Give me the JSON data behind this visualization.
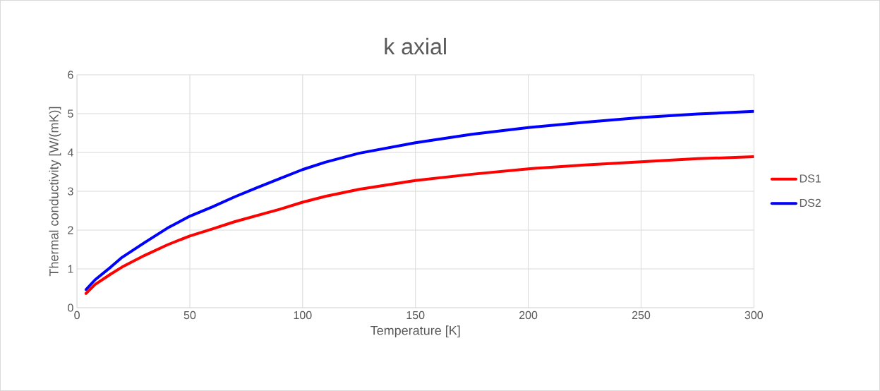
{
  "chart_data": {
    "type": "line",
    "title": "k axial",
    "xlabel": "Temperature [K]",
    "ylabel": "Thermal conductivity [W/(mK)]",
    "x": [
      4,
      8,
      15,
      20,
      30,
      40,
      50,
      60,
      70,
      80,
      90,
      100,
      110,
      125,
      150,
      175,
      200,
      225,
      250,
      275,
      300
    ],
    "series": [
      {
        "name": "DS1",
        "color": "#ff0000",
        "values": [
          0.37,
          0.6,
          0.87,
          1.05,
          1.35,
          1.62,
          1.85,
          2.03,
          2.22,
          2.38,
          2.54,
          2.72,
          2.87,
          3.05,
          3.28,
          3.44,
          3.58,
          3.68,
          3.76,
          3.84,
          3.89
        ]
      },
      {
        "name": "DS2",
        "color": "#0000ff",
        "values": [
          0.47,
          0.72,
          1.05,
          1.3,
          1.68,
          2.05,
          2.36,
          2.6,
          2.86,
          3.1,
          3.33,
          3.56,
          3.75,
          3.98,
          4.25,
          4.47,
          4.64,
          4.78,
          4.9,
          4.99,
          5.06
        ]
      }
    ],
    "xlim": [
      0,
      300
    ],
    "xticks": [
      0,
      50,
      100,
      150,
      200,
      250,
      300
    ],
    "ylim": [
      0,
      6
    ],
    "yticks": [
      0,
      1,
      2,
      3,
      4,
      5,
      6
    ],
    "grid": true,
    "legend": "right",
    "marker": "none",
    "line_style": "solid"
  }
}
